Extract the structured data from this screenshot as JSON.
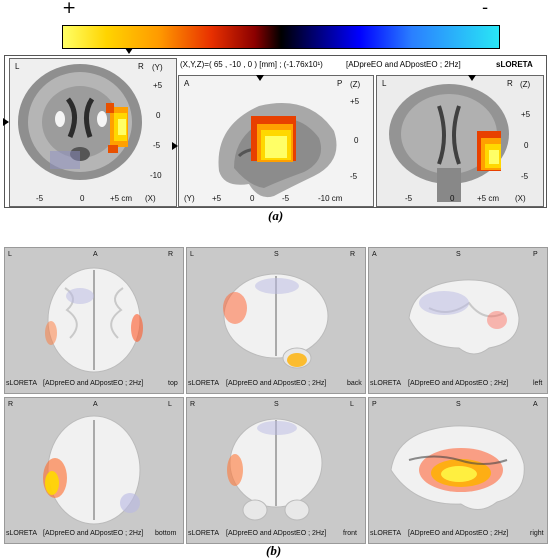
{
  "colorbar": {
    "plus": "+",
    "minus": "-"
  },
  "panel_a": {
    "caption": "(a)",
    "header": "(X,Y,Z)=( 65 , -10 , 0 ) [mm] ; (-1.76x10¹)",
    "contrast": "[ADpreEO and ADpostEO ; 2Hz]",
    "software": "sLORETA",
    "axial": {
      "corner_left": "L",
      "corner_right": "R",
      "axis_label": "(Y)",
      "right_ticks": [
        "+5",
        "0",
        "-5",
        "-10"
      ],
      "bottom_ticks": [
        "-5",
        "0",
        "+5 cm",
        "(X)"
      ]
    },
    "sagittal": {
      "corner_left": "A",
      "corner_right": "P",
      "axis_label": "(Z)",
      "right_ticks": [
        "+5",
        "0",
        "-5"
      ],
      "bottom_ticks": [
        "(Y)",
        "+5",
        "0",
        "-5",
        "-10 cm"
      ]
    },
    "coronal": {
      "corner_left": "L",
      "corner_right": "R",
      "axis_label": "(Z)",
      "right_ticks": [
        "+5",
        "0",
        "-5"
      ],
      "bottom_ticks": [
        "-5",
        "0",
        "+5 cm",
        "(X)"
      ]
    }
  },
  "panel_b": {
    "caption": "(b)",
    "views": [
      {
        "tl": "L",
        "tm": "A",
        "tr": "R",
        "bl": "sLORETA",
        "bm": "[ADpreEO and ADpostEO ; 2Hz]",
        "br": "top"
      },
      {
        "tl": "L",
        "tm": "S",
        "tr": "R",
        "bl": "sLORETA",
        "bm": "[ADpreEO and ADpostEO ; 2Hz]",
        "br": "back"
      },
      {
        "tl": "A",
        "tm": "S",
        "tr": "P",
        "bl": "sLORETA",
        "bm": "[ADpreEO and ADpostEO ; 2Hz]",
        "br": "left"
      },
      {
        "tl": "R",
        "tm": "A",
        "tr": "L",
        "bl": "sLORETA",
        "bm": "[ADpreEO and ADpostEO ; 2Hz]",
        "br": "bottom"
      },
      {
        "tl": "R",
        "tm": "S",
        "tr": "L",
        "bl": "sLORETA",
        "bm": "[ADpreEO and ADpostEO ; 2Hz]",
        "br": "front"
      },
      {
        "tl": "P",
        "tm": "S",
        "tr": "A",
        "bl": "sLORETA",
        "bm": "[ADpreEO and ADpostEO ; 2Hz]",
        "br": "right"
      }
    ]
  }
}
